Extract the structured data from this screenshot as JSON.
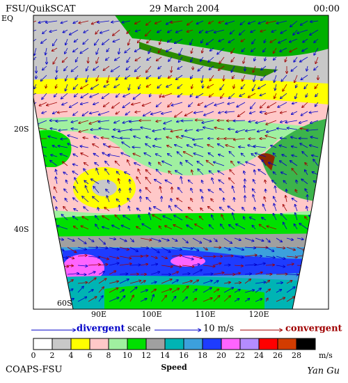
{
  "header": {
    "left": "FSU/QuikSCAT",
    "center": "29 March 2004",
    "right": "00:00"
  },
  "map": {
    "lat_labels": [
      "EQ",
      "20S",
      "40S",
      "60S"
    ],
    "lon_labels": [
      "90E",
      "100E",
      "110E",
      "120E"
    ]
  },
  "legend": {
    "divergent": "divergent",
    "scale": "scale",
    "scale_value": "10 m/s",
    "convergent": "convergent"
  },
  "colorbar": {
    "ticks": [
      "0",
      "2",
      "4",
      "6",
      "8",
      "10",
      "12",
      "14",
      "16",
      "18",
      "20",
      "22",
      "24",
      "26",
      "28"
    ],
    "colors": [
      "#ffffff",
      "#c8c8c8",
      "#ffff00",
      "#ffc8c8",
      "#a0f0a0",
      "#00e000",
      "#a0a0a0",
      "#00b4b4",
      "#3ca0dc",
      "#1e3cff",
      "#ff64ff",
      "#b48cff",
      "#ff0000",
      "#d23c00",
      "#000000"
    ],
    "unit": "m/s",
    "label": "Speed"
  },
  "footer": {
    "left": "COAPS-FSU",
    "right": "Yan Gu"
  }
}
